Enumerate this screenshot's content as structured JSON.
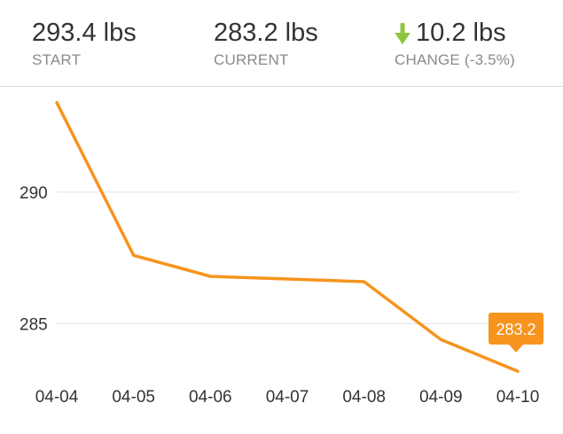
{
  "stats": {
    "start": {
      "value": "293.4 lbs",
      "label": "START"
    },
    "current": {
      "value": "283.2 lbs",
      "label": "CURRENT"
    },
    "change": {
      "value": "10.2 lbs",
      "label": "CHANGE (-3.5%)",
      "direction_icon": "arrow-down-icon",
      "icon_color": "#8cc63f"
    }
  },
  "colors": {
    "line": "#f7941d",
    "grid": "#e3e3e3",
    "callout_bg": "#f7941d",
    "callout_text": "#ffffff"
  },
  "chart_data": {
    "type": "line",
    "categories": [
      "04-04",
      "04-05",
      "04-06",
      "04-07",
      "04-08",
      "04-09",
      "04-10"
    ],
    "series": [
      {
        "values": [
          293.4,
          287.6,
          286.8,
          286.7,
          286.6,
          284.4,
          283.2
        ]
      }
    ],
    "yticks": [
      285,
      290
    ],
    "ylim": [
      283.0,
      294.0
    ],
    "grid": true,
    "callout": {
      "label": "283.2",
      "index": 6
    }
  }
}
